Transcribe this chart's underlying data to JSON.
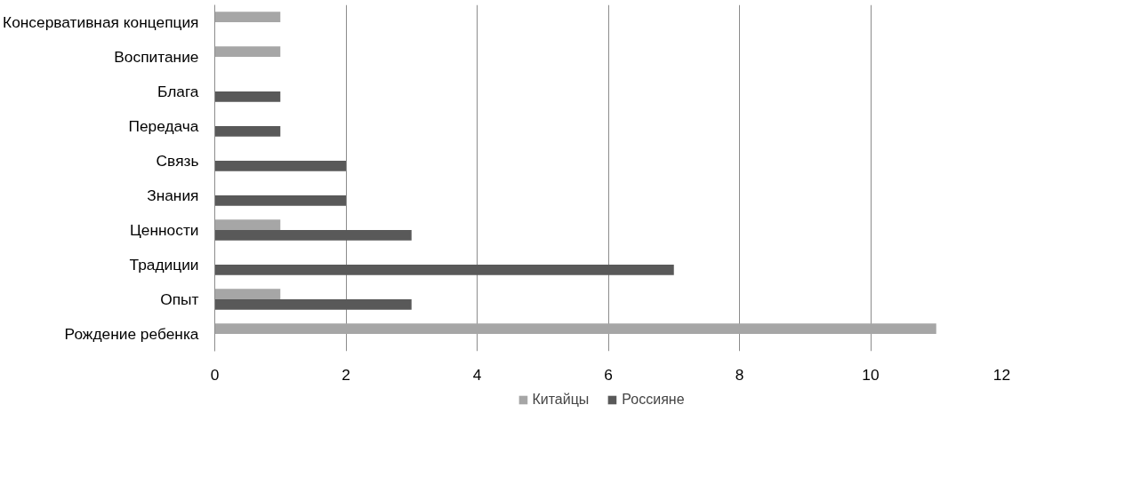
{
  "chart_data": {
    "type": "bar",
    "orientation": "horizontal",
    "categories": [
      "Консервативная концепция",
      "Воспитание",
      "Блага",
      "Передача",
      "Связь",
      "Знания",
      "Ценности",
      "Традиции",
      "Опыт",
      "Рождение ребенка"
    ],
    "series": [
      {
        "name": "Китайцы",
        "color": "#a6a6a6",
        "values": [
          1,
          1,
          null,
          null,
          null,
          null,
          1,
          null,
          1,
          11
        ]
      },
      {
        "name": "Россияне",
        "color": "#595959",
        "values": [
          null,
          null,
          1,
          1,
          2,
          2,
          3,
          7,
          3,
          null
        ]
      }
    ],
    "xlim": [
      0,
      12
    ],
    "xticks": [
      0,
      2,
      4,
      6,
      8,
      10,
      12
    ],
    "grid": "x",
    "legend": "bottom"
  }
}
